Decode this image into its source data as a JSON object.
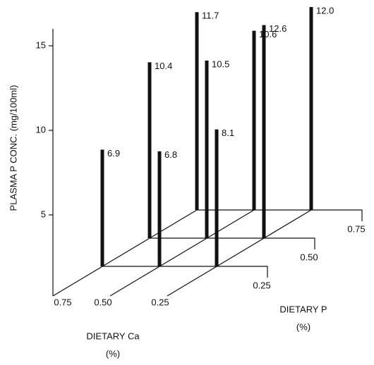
{
  "chart_data": {
    "type": "bar3d",
    "ylabel": "PLASMA P CONC. (mg/100ml)",
    "xlabel": [
      "DIETARY Ca",
      "(%)"
    ],
    "zlabel": [
      "DIETARY P",
      "(%)"
    ],
    "x_categories": [
      "0.75",
      "0.50",
      "0.25"
    ],
    "z_categories": [
      "0.25",
      "0.50",
      "0.75"
    ],
    "values": [
      [
        6.9,
        6.8,
        8.1
      ],
      [
        10.4,
        10.5,
        12.6
      ],
      [
        11.7,
        10.6,
        12.0
      ]
    ],
    "value_labels": [
      [
        "6.9",
        "6.8",
        "8.1"
      ],
      [
        "10.4",
        "10.5",
        "12.6"
      ],
      [
        "11.7",
        "10.6",
        "12.0"
      ]
    ],
    "ylim": [
      0,
      16
    ],
    "yticks": [
      5,
      10,
      15
    ],
    "color": "#111111"
  }
}
